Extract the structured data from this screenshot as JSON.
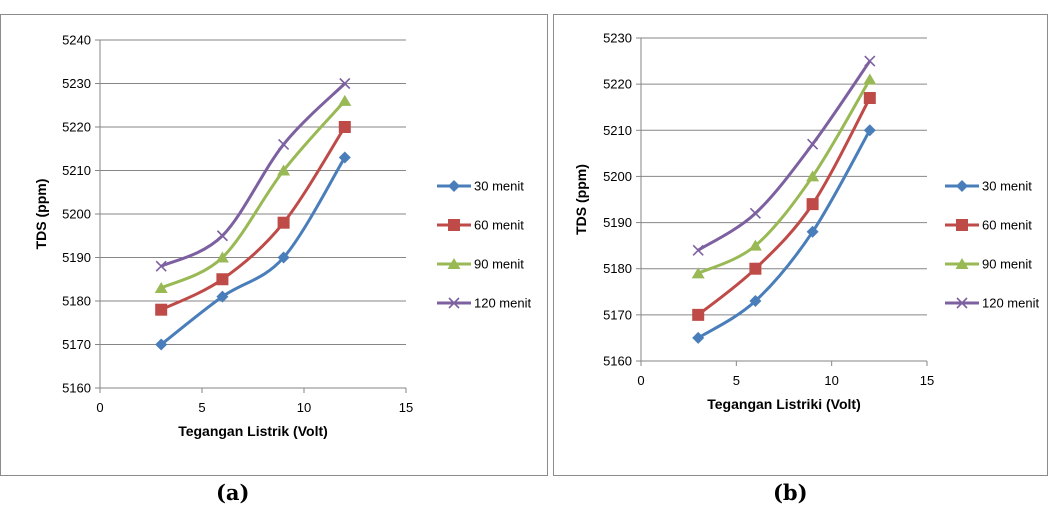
{
  "chart_data": [
    {
      "type": "line",
      "caption": "(a)",
      "xlabel": "Tegangan Listrik (Volt)",
      "ylabel": "TDS (ppm)",
      "xlim": [
        0,
        15
      ],
      "ylim": [
        5160,
        5240
      ],
      "xticks": [
        0,
        5,
        10,
        15
      ],
      "yticks": [
        5160,
        5170,
        5180,
        5190,
        5200,
        5210,
        5220,
        5230,
        5240
      ],
      "x": [
        3,
        6,
        9,
        12
      ],
      "grid": "horizontal",
      "legend_position": "right",
      "series": [
        {
          "name": "30 menit",
          "values": [
            5170,
            5181,
            5190,
            5213
          ],
          "color": "#4a7ebb",
          "marker": "diamond"
        },
        {
          "name": "60 menit",
          "values": [
            5178,
            5185,
            5198,
            5220
          ],
          "color": "#be4b48",
          "marker": "square"
        },
        {
          "name": "90 menit",
          "values": [
            5183,
            5190,
            5210,
            5226
          ],
          "color": "#98b954",
          "marker": "triangle"
        },
        {
          "name": "120 menit",
          "values": [
            5188,
            5195,
            5216,
            5230
          ],
          "color": "#7d60a0",
          "marker": "x"
        }
      ]
    },
    {
      "type": "line",
      "caption": "(b)",
      "xlabel": "Tegangan Listriki (Volt)",
      "ylabel": "TDS (ppm)",
      "xlim": [
        0,
        15
      ],
      "ylim": [
        5160,
        5230
      ],
      "xticks": [
        0,
        5,
        10,
        15
      ],
      "yticks": [
        5160,
        5170,
        5180,
        5190,
        5200,
        5210,
        5220,
        5230
      ],
      "x": [
        3,
        6,
        9,
        12
      ],
      "grid": "horizontal",
      "legend_position": "right",
      "series": [
        {
          "name": "30 menit",
          "values": [
            5165,
            5173,
            5188,
            5210
          ],
          "color": "#4a7ebb",
          "marker": "diamond"
        },
        {
          "name": "60 menit",
          "values": [
            5170,
            5180,
            5194,
            5217
          ],
          "color": "#be4b48",
          "marker": "square"
        },
        {
          "name": "90 menit",
          "values": [
            5179,
            5185,
            5200,
            5221
          ],
          "color": "#98b954",
          "marker": "triangle"
        },
        {
          "name": "120 menit",
          "values": [
            5184,
            5192,
            5207,
            5225
          ],
          "color": "#7d60a0",
          "marker": "x"
        }
      ]
    }
  ]
}
